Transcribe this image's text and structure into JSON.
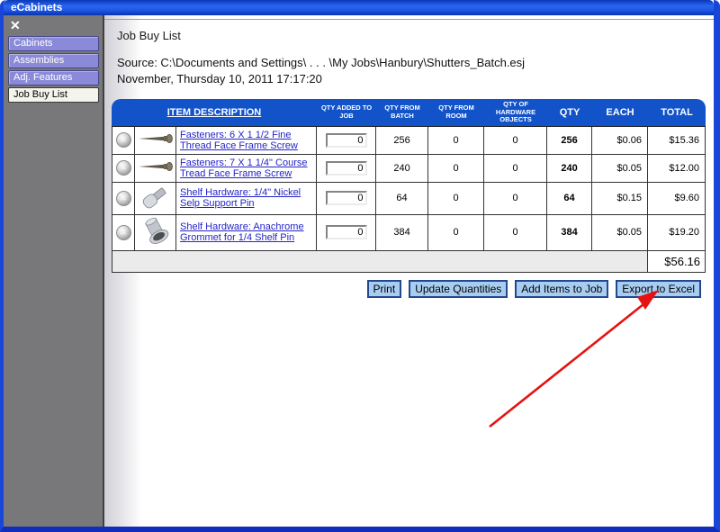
{
  "window": {
    "title": "eCabinets"
  },
  "sidebar": {
    "close_glyph": "✕",
    "close_icon": "close-icon",
    "items": [
      {
        "label": "Cabinets",
        "active": false
      },
      {
        "label": "Assemblies",
        "active": false
      },
      {
        "label": "Adj. Features",
        "active": false
      },
      {
        "label": "Job Buy List",
        "active": true
      }
    ]
  },
  "page": {
    "title": "Job Buy List",
    "source_line": "Source: C:\\Documents and Settings\\ . . . \\My Jobs\\Hanbury\\Shutters_Batch.esj",
    "date_line": "November, Thursday 10, 2011 17:17:20"
  },
  "table": {
    "headers": [
      "ITEM DESCRIPTION",
      "QTY ADDED TO JOB",
      "QTY FROM BATCH",
      "QTY FROM ROOM",
      "QTY OF HARDWARE OBJECTS",
      "QTY",
      "EACH",
      "TOTAL"
    ],
    "rows": [
      {
        "delete_icon": "delete-icon",
        "image": "screw-image",
        "description": "Fasteners: 6 X 1 1/2 Fine Thread Face Frame Screw",
        "qty_added_to_job": "0",
        "qty_from_batch": "256",
        "qty_from_room": "0",
        "qty_hardware_objects": "0",
        "qty": "256",
        "each": "$0.06",
        "total": "$15.36"
      },
      {
        "delete_icon": "delete-icon",
        "image": "screw-image",
        "description": "Fasteners: 7 X 1 1/4\" Course Tread Face Frame Screw",
        "qty_added_to_job": "0",
        "qty_from_batch": "240",
        "qty_from_room": "0",
        "qty_hardware_objects": "0",
        "qty": "240",
        "each": "$0.05",
        "total": "$12.00"
      },
      {
        "delete_icon": "delete-icon",
        "image": "shelf-pin-image",
        "description": "Shelf Hardware: 1/4\" Nickel Selp Support Pin",
        "qty_added_to_job": "0",
        "qty_from_batch": "64",
        "qty_from_room": "0",
        "qty_hardware_objects": "0",
        "qty": "64",
        "each": "$0.15",
        "total": "$9.60"
      },
      {
        "delete_icon": "delete-icon",
        "image": "grommet-image",
        "description": "Shelf Hardware: Anachrome Grommet for 1/4 Shelf Pin",
        "qty_added_to_job": "0",
        "qty_from_batch": "384",
        "qty_from_room": "0",
        "qty_hardware_objects": "0",
        "qty": "384",
        "each": "$0.05",
        "total": "$19.20"
      }
    ],
    "grand_total": "$56.16"
  },
  "buttons": [
    {
      "label": "Print"
    },
    {
      "label": "Update Quantities"
    },
    {
      "label": "Add Items to Job"
    },
    {
      "label": "Export to Excel"
    }
  ],
  "annotation": {
    "arrow_icon": "red-arrow-icon",
    "points_to": "Export to Excel"
  },
  "colors": {
    "titlebar_blue": "#1c55e2",
    "window_border_blue": "#1846d8",
    "sidebar_gray": "#78787a",
    "sidebar_button_purple": "#8a8ad8",
    "active_item_cream": "#f4f4ec",
    "table_header_blue": "#1253c9",
    "link_blue": "#2424c8",
    "action_button_blue": "#a8cdf0",
    "action_button_border": "#24488f",
    "total_row_gray": "#ebebeb",
    "arrow_red": "#e81111"
  }
}
